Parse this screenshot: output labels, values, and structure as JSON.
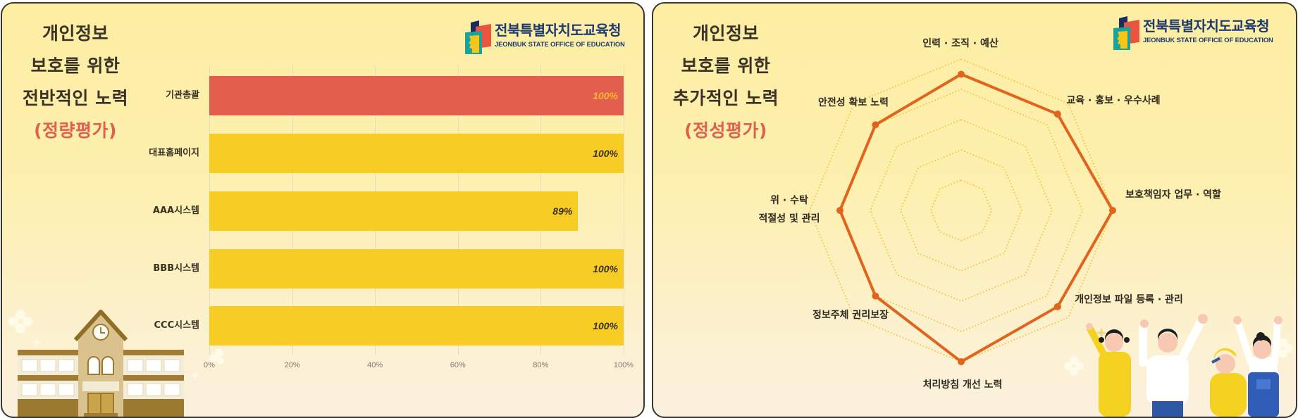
{
  "left": {
    "title_lines": [
      "개인정보",
      "보호를 위한",
      "전반적인 노력"
    ],
    "subtitle": "(정량평가)",
    "logo": {
      "korean": "전북특별자치도교육청",
      "english": "JEONBUK STATE OFFICE OF EDUCATION",
      "icon": "education-office-logo-icon"
    }
  },
  "right": {
    "title_lines": [
      "개인정보",
      "보호를 위한",
      "추가적인 노력"
    ],
    "subtitle": "(정성평가)",
    "logo": {
      "korean": "전북특별자치도교육청",
      "english": "JEONBUK STATE OFFICE OF EDUCATION",
      "icon": "education-office-logo-icon"
    }
  },
  "colors": {
    "title": "#3b3226",
    "subtitle": "#e0604f",
    "logo_navy": "#1f3a70",
    "bar_primary": "#e35f4d",
    "bar_secondary": "#f6cc25",
    "radar_line": "#e2641c",
    "radar_rings": "#f0c640"
  },
  "chart_data": [
    {
      "type": "bar",
      "orientation": "horizontal",
      "title": "개인정보 보호를 위한 전반적인 노력 (정량평가)",
      "categories": [
        "기관총괄",
        "대표홈페이지",
        "AAA시스템",
        "BBB시스템",
        "CCC시스템"
      ],
      "values": [
        100,
        100,
        89,
        100,
        100
      ],
      "value_labels": [
        "100%",
        "100%",
        "89%",
        "100%",
        "100%"
      ],
      "bar_colors": [
        "#e35f4d",
        "#f6cc25",
        "#f6cc25",
        "#f6cc25",
        "#f6cc25"
      ],
      "value_label_colors": [
        "#f7b733",
        "#3b3224",
        "#3b3224",
        "#3b3224",
        "#3b3224"
      ],
      "x_ticks": [
        "0%",
        "20%",
        "40%",
        "60%",
        "80%",
        "100%"
      ],
      "xlim": [
        0,
        100
      ],
      "xlabel": "",
      "ylabel": "",
      "grid": true,
      "legend": "none"
    },
    {
      "type": "radar",
      "title": "개인정보 보호를 위한 추가적인 노력 (정성평가)",
      "categories": [
        "인력 · 조직 · 예산",
        "교육 · 홍보 · 우수사례",
        "보호책임자 업무 · 역할",
        "개인정보 파일 등록 · 관리",
        "처리방침 개선 노력",
        "정보주체 권리보장",
        "위 · 수탁\n적절성 및 관리",
        "안전성 확보 노력"
      ],
      "values": [
        90,
        90,
        100,
        90,
        100,
        80,
        80,
        80
      ],
      "rlim": [
        0,
        100
      ],
      "rings": 5,
      "grid": true,
      "legend": "none"
    }
  ]
}
